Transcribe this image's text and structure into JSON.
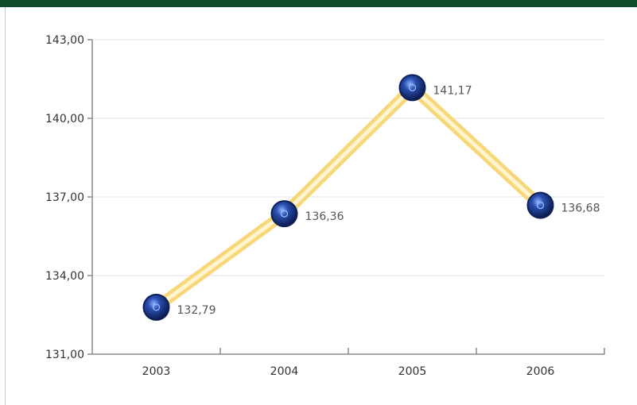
{
  "chart_data": {
    "type": "line",
    "categories": [
      "2003",
      "2004",
      "2005",
      "2006"
    ],
    "series": [
      {
        "values": [
          132.79,
          136.36,
          141.17,
          136.68
        ]
      }
    ],
    "data_labels": [
      "132,79",
      "136,36",
      "141,17",
      "136,68"
    ],
    "y_ticks": [
      "131,00",
      "134,00",
      "137,00",
      "140,00",
      "143,00"
    ],
    "ylim": [
      131,
      143
    ],
    "title": "",
    "xlabel": "",
    "ylabel": "",
    "grid": true,
    "colors": {
      "line": "#f7d77a",
      "line_core": "#fff6cf",
      "marker": "#1f3f8f",
      "marker_dark": "#0c1f5a",
      "marker_highlight": "#9fc0ff",
      "grid": "#e3e3e3",
      "axis": "#8a8a8a",
      "header": "#0d4b2a"
    }
  }
}
